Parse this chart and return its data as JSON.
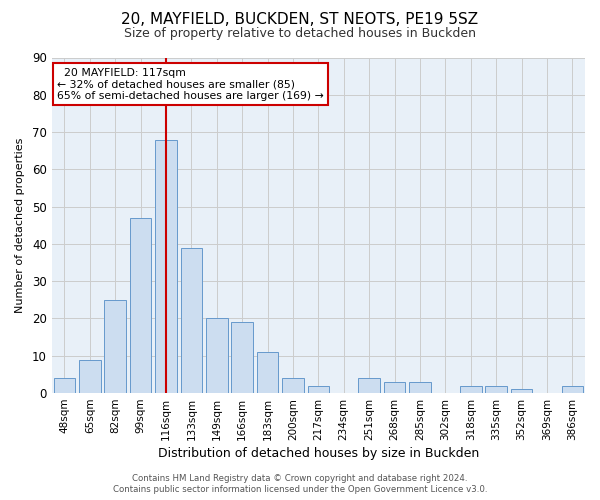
{
  "title_line1": "20, MAYFIELD, BUCKDEN, ST NEOTS, PE19 5SZ",
  "title_line2": "Size of property relative to detached houses in Buckden",
  "xlabel": "Distribution of detached houses by size in Buckden",
  "ylabel": "Number of detached properties",
  "footer_line1": "Contains HM Land Registry data © Crown copyright and database right 2024.",
  "footer_line2": "Contains public sector information licensed under the Open Government Licence v3.0.",
  "annotation_line1": "20 MAYFIELD: 117sqm",
  "annotation_line2": "← 32% of detached houses are smaller (85)",
  "annotation_line3": "65% of semi-detached houses are larger (169) →",
  "bar_labels": [
    "48sqm",
    "65sqm",
    "82sqm",
    "99sqm",
    "116sqm",
    "133sqm",
    "149sqm",
    "166sqm",
    "183sqm",
    "200sqm",
    "217sqm",
    "234sqm",
    "251sqm",
    "268sqm",
    "285sqm",
    "302sqm",
    "318sqm",
    "335sqm",
    "352sqm",
    "369sqm",
    "386sqm"
  ],
  "bar_values": [
    4,
    9,
    25,
    47,
    68,
    39,
    20,
    19,
    11,
    4,
    2,
    0,
    4,
    3,
    3,
    0,
    2,
    2,
    1,
    0,
    2
  ],
  "bar_color": "#ccddf0",
  "bar_edge_color": "#6699cc",
  "highlight_bar_index": 4,
  "highlight_color": "#cc0000",
  "ylim": [
    0,
    90
  ],
  "yticks": [
    0,
    10,
    20,
    30,
    40,
    50,
    60,
    70,
    80,
    90
  ],
  "grid_color": "#cccccc",
  "bg_color": "#ffffff",
  "plot_bg_color": "#e8f0f8",
  "annotation_box_color": "#ffffff",
  "annotation_box_edge": "#cc0000",
  "figsize": [
    6.0,
    5.0
  ],
  "dpi": 100
}
